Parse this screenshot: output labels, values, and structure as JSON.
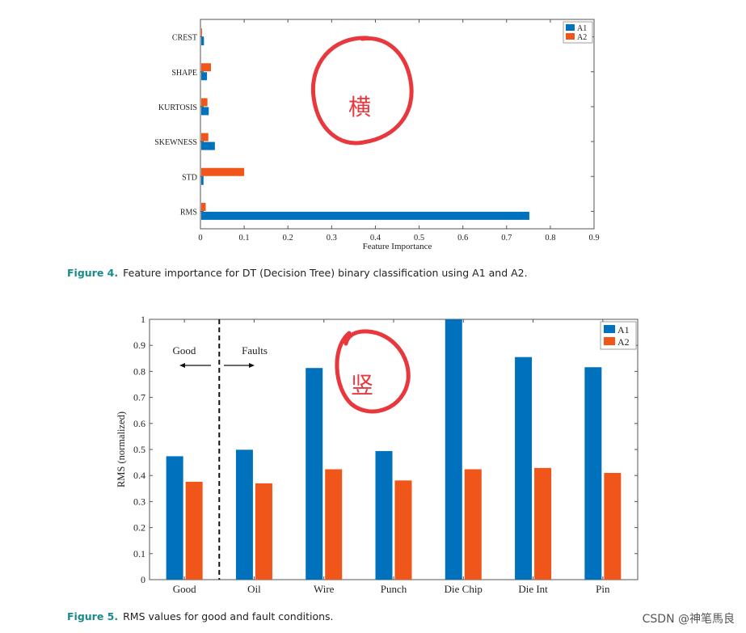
{
  "figure4": {
    "caption_label": "Figure 4.",
    "caption_text": "Feature importance for DT (Decision Tree) binary classification using A1 and A2.",
    "annotation": "横"
  },
  "figure5": {
    "caption_label": "Figure 5.",
    "caption_text": "RMS values for good and fault conditions.",
    "annotation": "竖",
    "good_label": "Good",
    "faults_label": "Faults"
  },
  "watermark": "CSDN @神笔馬良",
  "colors": {
    "A1": "#0072bd",
    "A2": "#f0551a",
    "caption_accent": "#1a8a8a",
    "annotation": "#e8383d"
  },
  "chart_data": [
    {
      "type": "bar",
      "orientation": "horizontal",
      "categories": [
        "RMS",
        "STD",
        "SKEWNESS",
        "KURTOSIS",
        "SHAPE",
        "CREST"
      ],
      "series": [
        {
          "name": "A1",
          "values": [
            0.752,
            0.007,
            0.033,
            0.019,
            0.015,
            0.008
          ]
        },
        {
          "name": "A2",
          "values": [
            0.012,
            0.1,
            0.018,
            0.016,
            0.024,
            0.002
          ]
        }
      ],
      "xlabel": "Feature Importance",
      "xlim": [
        0,
        0.9
      ],
      "xticks": [
        "0",
        "0.1",
        "0.2",
        "0.3",
        "0.4",
        "0.5",
        "0.6",
        "0.7",
        "0.8",
        "0.9"
      ],
      "legend": "top-right",
      "grid": false
    },
    {
      "type": "bar",
      "categories": [
        "Good",
        "Oil",
        "Wire",
        "Punch",
        "Die Chip",
        "Die Int",
        "Pin"
      ],
      "series": [
        {
          "name": "A1",
          "values": [
            0.474,
            0.499,
            0.813,
            0.494,
            1.0,
            0.855,
            0.816
          ]
        },
        {
          "name": "A2",
          "values": [
            0.376,
            0.37,
            0.424,
            0.381,
            0.424,
            0.429,
            0.41
          ]
        }
      ],
      "ylabel": "RMS (normalized)",
      "ylim": [
        0,
        1
      ],
      "yticks": [
        "0",
        "0.1",
        "0.2",
        "0.3",
        "0.4",
        "0.5",
        "0.6",
        "0.7",
        "0.8",
        "0.9",
        "1"
      ],
      "legend": "top-right",
      "grid": false
    }
  ]
}
